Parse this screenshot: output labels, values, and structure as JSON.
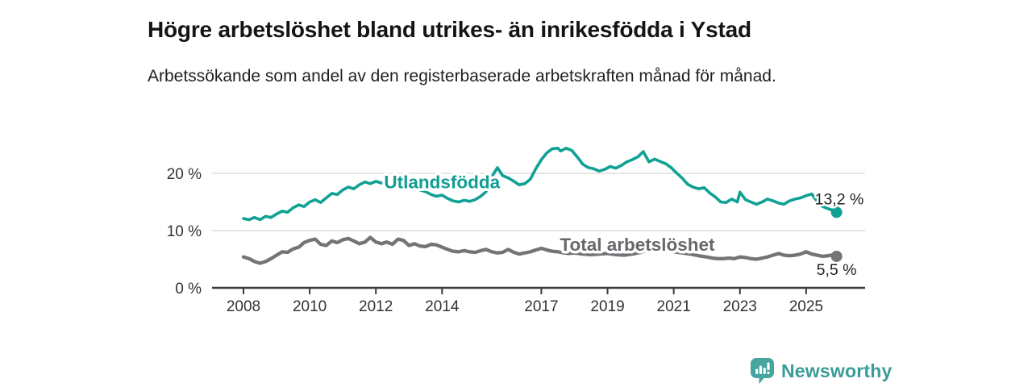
{
  "header": {
    "title": "Högre arbetslöshet bland utrikes- än inrikesfödda i Ystad",
    "subtitle": "Arbetssökande som andel av den registerbaserade arbetskraften månad för månad."
  },
  "footer": {
    "brand": "Newsworthy",
    "logo_icon": "bar-chart-speech-bubble-icon",
    "logo_color": "#47a5a0",
    "brand_text_color": "#3a9c98"
  },
  "chart_data": {
    "type": "line",
    "title": "Högre arbetslöshet bland utrikes- än inrikesfödda i Ystad",
    "xlabel": "",
    "ylabel": "",
    "xlim": [
      2007.05,
      2026.8
    ],
    "ylim": [
      0,
      26
    ],
    "grid": "horizontal-y",
    "grid_color": "#d8d8d8",
    "axis_color": "#3a3a3a",
    "tick_text_color": "#333333",
    "x_ticks": [
      2008,
      2010,
      2012,
      2014,
      2017,
      2019,
      2021,
      2023,
      2025
    ],
    "x_tick_labels": [
      "2008",
      "2010",
      "2012",
      "2014",
      "2017",
      "2019",
      "2021",
      "2023",
      "2025"
    ],
    "y_ticks": [
      0,
      10,
      20
    ],
    "y_tick_labels": [
      "0 %",
      "10 %",
      "20 %"
    ],
    "legend_position": "inline-labels-on-lines",
    "series": [
      {
        "name": "Utlandsfödda",
        "color": "#10a194",
        "label": {
          "text": "Utlandsfödda",
          "anchor_year": 2014.0,
          "anchor_value": 18.5
        },
        "end_value_label": "13,2 %",
        "end_value": 13.2,
        "points": [
          [
            2008.0,
            12.1
          ],
          [
            2008.17,
            11.9
          ],
          [
            2008.33,
            12.3
          ],
          [
            2008.5,
            11.9
          ],
          [
            2008.67,
            12.5
          ],
          [
            2008.83,
            12.3
          ],
          [
            2009.0,
            12.9
          ],
          [
            2009.17,
            13.4
          ],
          [
            2009.33,
            13.2
          ],
          [
            2009.5,
            14.0
          ],
          [
            2009.67,
            14.5
          ],
          [
            2009.83,
            14.2
          ],
          [
            2010.0,
            15.0
          ],
          [
            2010.17,
            15.4
          ],
          [
            2010.33,
            14.9
          ],
          [
            2010.5,
            15.7
          ],
          [
            2010.67,
            16.5
          ],
          [
            2010.83,
            16.3
          ],
          [
            2011.0,
            17.1
          ],
          [
            2011.17,
            17.6
          ],
          [
            2011.33,
            17.3
          ],
          [
            2011.5,
            18.0
          ],
          [
            2011.67,
            18.5
          ],
          [
            2011.83,
            18.2
          ],
          [
            2012.0,
            18.6
          ],
          [
            2012.17,
            18.3
          ],
          [
            2012.33,
            18.6
          ],
          [
            2012.5,
            18.5
          ],
          [
            2012.67,
            18.6
          ],
          [
            2012.83,
            18.3
          ],
          [
            2013.0,
            17.9
          ],
          [
            2013.17,
            17.5
          ],
          [
            2013.33,
            17.1
          ],
          [
            2013.5,
            16.8
          ],
          [
            2013.67,
            16.3
          ],
          [
            2013.83,
            16.0
          ],
          [
            2014.0,
            16.2
          ],
          [
            2014.17,
            15.6
          ],
          [
            2014.33,
            15.2
          ],
          [
            2014.5,
            15.0
          ],
          [
            2014.67,
            15.3
          ],
          [
            2014.83,
            15.1
          ],
          [
            2015.0,
            15.4
          ],
          [
            2015.17,
            16.0
          ],
          [
            2015.33,
            16.8
          ],
          [
            2015.5,
            19.4
          ],
          [
            2015.67,
            21.0
          ],
          [
            2015.83,
            19.6
          ],
          [
            2016.0,
            19.2
          ],
          [
            2016.17,
            18.6
          ],
          [
            2016.33,
            18.0
          ],
          [
            2016.5,
            18.2
          ],
          [
            2016.67,
            19.0
          ],
          [
            2016.83,
            20.8
          ],
          [
            2017.0,
            22.4
          ],
          [
            2017.17,
            23.6
          ],
          [
            2017.33,
            24.3
          ],
          [
            2017.5,
            24.4
          ],
          [
            2017.58,
            23.9
          ],
          [
            2017.75,
            24.4
          ],
          [
            2017.92,
            24.0
          ],
          [
            2018.08,
            22.9
          ],
          [
            2018.25,
            21.6
          ],
          [
            2018.42,
            21.0
          ],
          [
            2018.58,
            20.8
          ],
          [
            2018.75,
            20.4
          ],
          [
            2018.92,
            20.7
          ],
          [
            2019.08,
            21.2
          ],
          [
            2019.25,
            20.9
          ],
          [
            2019.42,
            21.4
          ],
          [
            2019.58,
            22.0
          ],
          [
            2019.75,
            22.4
          ],
          [
            2019.92,
            22.9
          ],
          [
            2020.08,
            23.8
          ],
          [
            2020.25,
            22.0
          ],
          [
            2020.42,
            22.5
          ],
          [
            2020.58,
            22.1
          ],
          [
            2020.75,
            21.7
          ],
          [
            2020.92,
            21.0
          ],
          [
            2021.08,
            20.1
          ],
          [
            2021.25,
            19.2
          ],
          [
            2021.42,
            18.1
          ],
          [
            2021.58,
            17.6
          ],
          [
            2021.75,
            17.3
          ],
          [
            2021.92,
            17.5
          ],
          [
            2022.08,
            16.6
          ],
          [
            2022.25,
            15.9
          ],
          [
            2022.42,
            15.0
          ],
          [
            2022.58,
            14.9
          ],
          [
            2022.75,
            15.5
          ],
          [
            2022.92,
            15.0
          ],
          [
            2023.0,
            16.7
          ],
          [
            2023.17,
            15.4
          ],
          [
            2023.33,
            15.0
          ],
          [
            2023.5,
            14.6
          ],
          [
            2023.67,
            15.0
          ],
          [
            2023.83,
            15.5
          ],
          [
            2024.0,
            15.2
          ],
          [
            2024.17,
            14.8
          ],
          [
            2024.33,
            14.6
          ],
          [
            2024.5,
            15.2
          ],
          [
            2024.67,
            15.5
          ],
          [
            2024.83,
            15.7
          ],
          [
            2025.0,
            16.1
          ],
          [
            2025.17,
            16.4
          ],
          [
            2025.33,
            15.1
          ],
          [
            2025.5,
            14.2
          ],
          [
            2025.67,
            13.8
          ],
          [
            2025.83,
            13.5
          ],
          [
            2025.92,
            13.2
          ]
        ]
      },
      {
        "name": "Total arbetslöshet",
        "color": "#737378",
        "label": {
          "text": "Total arbetslöshet",
          "anchor_year": 2019.9,
          "anchor_value": 7.6
        },
        "end_value_label": "5,5 %",
        "end_value": 5.5,
        "points": [
          [
            2008.0,
            5.4
          ],
          [
            2008.17,
            5.1
          ],
          [
            2008.33,
            4.6
          ],
          [
            2008.5,
            4.3
          ],
          [
            2008.67,
            4.6
          ],
          [
            2008.83,
            5.1
          ],
          [
            2009.0,
            5.7
          ],
          [
            2009.17,
            6.3
          ],
          [
            2009.33,
            6.2
          ],
          [
            2009.5,
            6.8
          ],
          [
            2009.67,
            7.1
          ],
          [
            2009.83,
            7.9
          ],
          [
            2010.0,
            8.3
          ],
          [
            2010.17,
            8.5
          ],
          [
            2010.33,
            7.6
          ],
          [
            2010.5,
            7.4
          ],
          [
            2010.67,
            8.2
          ],
          [
            2010.83,
            7.9
          ],
          [
            2011.0,
            8.4
          ],
          [
            2011.17,
            8.6
          ],
          [
            2011.33,
            8.2
          ],
          [
            2011.5,
            7.7
          ],
          [
            2011.67,
            8.0
          ],
          [
            2011.83,
            8.8
          ],
          [
            2012.0,
            8.0
          ],
          [
            2012.17,
            7.7
          ],
          [
            2012.33,
            8.0
          ],
          [
            2012.5,
            7.6
          ],
          [
            2012.67,
            8.5
          ],
          [
            2012.83,
            8.3
          ],
          [
            2013.0,
            7.4
          ],
          [
            2013.17,
            7.7
          ],
          [
            2013.33,
            7.3
          ],
          [
            2013.5,
            7.2
          ],
          [
            2013.67,
            7.6
          ],
          [
            2013.83,
            7.5
          ],
          [
            2014.0,
            7.1
          ],
          [
            2014.17,
            6.7
          ],
          [
            2014.33,
            6.4
          ],
          [
            2014.5,
            6.3
          ],
          [
            2014.67,
            6.5
          ],
          [
            2014.83,
            6.3
          ],
          [
            2015.0,
            6.2
          ],
          [
            2015.17,
            6.5
          ],
          [
            2015.33,
            6.7
          ],
          [
            2015.5,
            6.3
          ],
          [
            2015.67,
            6.1
          ],
          [
            2015.83,
            6.2
          ],
          [
            2016.0,
            6.7
          ],
          [
            2016.17,
            6.2
          ],
          [
            2016.33,
            5.9
          ],
          [
            2016.5,
            6.1
          ],
          [
            2016.67,
            6.3
          ],
          [
            2016.83,
            6.6
          ],
          [
            2017.0,
            6.9
          ],
          [
            2017.17,
            6.6
          ],
          [
            2017.33,
            6.4
          ],
          [
            2017.5,
            6.3
          ],
          [
            2017.67,
            6.1
          ],
          [
            2017.83,
            6.0
          ],
          [
            2018.0,
            6.1
          ],
          [
            2018.25,
            5.9
          ],
          [
            2018.5,
            5.8
          ],
          [
            2018.75,
            5.9
          ],
          [
            2019.0,
            6.0
          ],
          [
            2019.25,
            5.8
          ],
          [
            2019.5,
            5.7
          ],
          [
            2019.75,
            5.9
          ],
          [
            2020.0,
            6.2
          ],
          [
            2020.25,
            6.7
          ],
          [
            2020.5,
            6.9
          ],
          [
            2020.75,
            6.6
          ],
          [
            2021.0,
            6.3
          ],
          [
            2021.25,
            6.1
          ],
          [
            2021.5,
            5.9
          ],
          [
            2021.75,
            5.6
          ],
          [
            2022.0,
            5.4
          ],
          [
            2022.17,
            5.2
          ],
          [
            2022.33,
            5.1
          ],
          [
            2022.5,
            5.1
          ],
          [
            2022.67,
            5.2
          ],
          [
            2022.83,
            5.1
          ],
          [
            2023.0,
            5.4
          ],
          [
            2023.17,
            5.3
          ],
          [
            2023.33,
            5.1
          ],
          [
            2023.5,
            5.0
          ],
          [
            2023.67,
            5.2
          ],
          [
            2023.83,
            5.4
          ],
          [
            2024.0,
            5.7
          ],
          [
            2024.17,
            6.0
          ],
          [
            2024.33,
            5.7
          ],
          [
            2024.5,
            5.6
          ],
          [
            2024.67,
            5.7
          ],
          [
            2024.83,
            5.9
          ],
          [
            2025.0,
            6.3
          ],
          [
            2025.17,
            5.9
          ],
          [
            2025.33,
            5.7
          ],
          [
            2025.5,
            5.5
          ],
          [
            2025.67,
            5.6
          ],
          [
            2025.83,
            5.8
          ],
          [
            2025.92,
            5.5
          ]
        ]
      }
    ]
  }
}
